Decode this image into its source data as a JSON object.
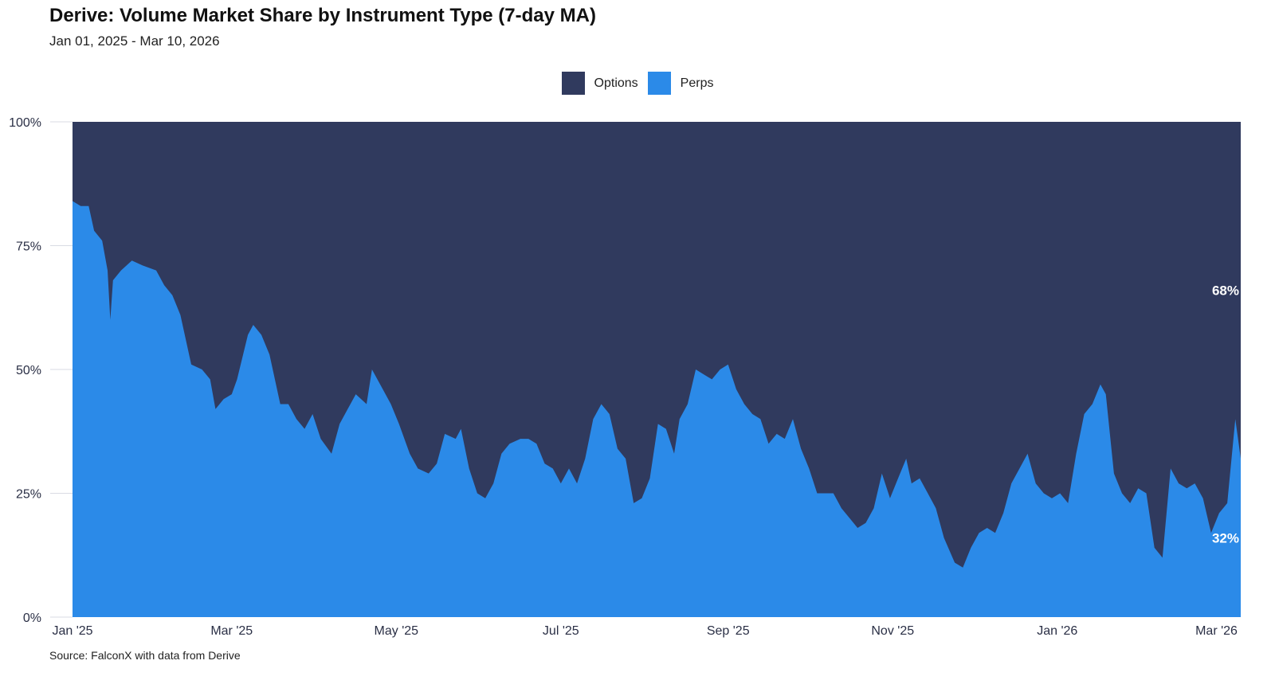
{
  "title": "Derive: Volume Market Share by Instrument Type (7-day MA)",
  "subtitle": "Jan 01, 2025 - Mar 10, 2026",
  "source": "Source: FalconX with data from Derive",
  "legend": [
    {
      "label": "Options",
      "color": "#303a5e"
    },
    {
      "label": "Perps",
      "color": "#2b8ae8"
    }
  ],
  "chart_data": {
    "type": "area",
    "stacked": true,
    "normalized": true,
    "x_type": "date",
    "x_tick_labels": [
      "Jan '25",
      "Mar '25",
      "May '25",
      "Jul '25",
      "Sep '25",
      "Nov '25",
      "Jan '26",
      "Mar '26"
    ],
    "x_tick_dates": [
      "2025-01-01",
      "2025-03-01",
      "2025-05-01",
      "2025-07-01",
      "2025-09-01",
      "2025-11-01",
      "2026-01-01",
      "2026-03-01"
    ],
    "y_tick_labels": [
      "0%",
      "25%",
      "50%",
      "75%",
      "100%"
    ],
    "y_ticks": [
      0,
      25,
      50,
      75,
      100
    ],
    "ylim": [
      0,
      100
    ],
    "x_range": [
      "2025-01-01",
      "2026-03-10"
    ],
    "series": [
      {
        "name": "Options",
        "color": "#303a5e",
        "note_values": "complement of Perps (100 - Perps)"
      },
      {
        "name": "Perps",
        "color": "#2b8ae8",
        "points": [
          [
            "2025-01-01",
            84
          ],
          [
            "2025-01-04",
            83
          ],
          [
            "2025-01-07",
            83
          ],
          [
            "2025-01-09",
            78
          ],
          [
            "2025-01-12",
            76
          ],
          [
            "2025-01-14",
            70
          ],
          [
            "2025-01-15",
            60
          ],
          [
            "2025-01-16",
            68
          ],
          [
            "2025-01-19",
            70
          ],
          [
            "2025-01-23",
            72
          ],
          [
            "2025-01-27",
            71
          ],
          [
            "2025-02-01",
            70
          ],
          [
            "2025-02-04",
            67
          ],
          [
            "2025-02-07",
            65
          ],
          [
            "2025-02-10",
            61
          ],
          [
            "2025-02-14",
            51
          ],
          [
            "2025-02-18",
            50
          ],
          [
            "2025-02-21",
            48
          ],
          [
            "2025-02-23",
            42
          ],
          [
            "2025-02-26",
            44
          ],
          [
            "2025-03-01",
            45
          ],
          [
            "2025-03-03",
            48
          ],
          [
            "2025-03-07",
            57
          ],
          [
            "2025-03-09",
            59
          ],
          [
            "2025-03-12",
            57
          ],
          [
            "2025-03-15",
            53
          ],
          [
            "2025-03-19",
            43
          ],
          [
            "2025-03-22",
            43
          ],
          [
            "2025-03-25",
            40
          ],
          [
            "2025-03-28",
            38
          ],
          [
            "2025-03-31",
            41
          ],
          [
            "2025-04-03",
            36
          ],
          [
            "2025-04-07",
            33
          ],
          [
            "2025-04-10",
            39
          ],
          [
            "2025-04-13",
            42
          ],
          [
            "2025-04-16",
            45
          ],
          [
            "2025-04-20",
            43
          ],
          [
            "2025-04-22",
            50
          ],
          [
            "2025-04-26",
            46
          ],
          [
            "2025-04-29",
            43
          ],
          [
            "2025-05-02",
            39
          ],
          [
            "2025-05-06",
            33
          ],
          [
            "2025-05-09",
            30
          ],
          [
            "2025-05-13",
            29
          ],
          [
            "2025-05-16",
            31
          ],
          [
            "2025-05-19",
            37
          ],
          [
            "2025-05-23",
            36
          ],
          [
            "2025-05-25",
            38
          ],
          [
            "2025-05-28",
            30
          ],
          [
            "2025-05-31",
            25
          ],
          [
            "2025-06-03",
            24
          ],
          [
            "2025-06-06",
            27
          ],
          [
            "2025-06-09",
            33
          ],
          [
            "2025-06-12",
            35
          ],
          [
            "2025-06-16",
            36
          ],
          [
            "2025-06-19",
            36
          ],
          [
            "2025-06-22",
            35
          ],
          [
            "2025-06-25",
            31
          ],
          [
            "2025-06-28",
            30
          ],
          [
            "2025-07-01",
            27
          ],
          [
            "2025-07-04",
            30
          ],
          [
            "2025-07-07",
            27
          ],
          [
            "2025-07-10",
            32
          ],
          [
            "2025-07-13",
            40
          ],
          [
            "2025-07-16",
            43
          ],
          [
            "2025-07-19",
            41
          ],
          [
            "2025-07-22",
            34
          ],
          [
            "2025-07-25",
            32
          ],
          [
            "2025-07-28",
            23
          ],
          [
            "2025-07-31",
            24
          ],
          [
            "2025-08-03",
            28
          ],
          [
            "2025-08-06",
            39
          ],
          [
            "2025-08-09",
            38
          ],
          [
            "2025-08-12",
            33
          ],
          [
            "2025-08-14",
            40
          ],
          [
            "2025-08-17",
            43
          ],
          [
            "2025-08-20",
            50
          ],
          [
            "2025-08-23",
            49
          ],
          [
            "2025-08-26",
            48
          ],
          [
            "2025-08-29",
            50
          ],
          [
            "2025-09-01",
            51
          ],
          [
            "2025-09-04",
            46
          ],
          [
            "2025-09-07",
            43
          ],
          [
            "2025-09-10",
            41
          ],
          [
            "2025-09-13",
            40
          ],
          [
            "2025-09-16",
            35
          ],
          [
            "2025-09-19",
            37
          ],
          [
            "2025-09-22",
            36
          ],
          [
            "2025-09-25",
            40
          ],
          [
            "2025-09-28",
            34
          ],
          [
            "2025-10-01",
            30
          ],
          [
            "2025-10-04",
            25
          ],
          [
            "2025-10-07",
            25
          ],
          [
            "2025-10-10",
            25
          ],
          [
            "2025-10-13",
            22
          ],
          [
            "2025-10-16",
            20
          ],
          [
            "2025-10-19",
            18
          ],
          [
            "2025-10-22",
            19
          ],
          [
            "2025-10-25",
            22
          ],
          [
            "2025-10-28",
            29
          ],
          [
            "2025-10-31",
            24
          ],
          [
            "2025-11-03",
            28
          ],
          [
            "2025-11-06",
            32
          ],
          [
            "2025-11-08",
            27
          ],
          [
            "2025-11-11",
            28
          ],
          [
            "2025-11-14",
            25
          ],
          [
            "2025-11-17",
            22
          ],
          [
            "2025-11-20",
            16
          ],
          [
            "2025-11-24",
            11
          ],
          [
            "2025-11-27",
            10
          ],
          [
            "2025-11-30",
            14
          ],
          [
            "2025-12-03",
            17
          ],
          [
            "2025-12-06",
            18
          ],
          [
            "2025-12-09",
            17
          ],
          [
            "2025-12-12",
            21
          ],
          [
            "2025-12-15",
            27
          ],
          [
            "2025-12-18",
            30
          ],
          [
            "2025-12-21",
            33
          ],
          [
            "2025-12-24",
            27
          ],
          [
            "2025-12-27",
            25
          ],
          [
            "2025-12-30",
            24
          ],
          [
            "2026-01-02",
            25
          ],
          [
            "2026-01-05",
            23
          ],
          [
            "2026-01-08",
            33
          ],
          [
            "2026-01-11",
            41
          ],
          [
            "2026-01-14",
            43
          ],
          [
            "2026-01-17",
            47
          ],
          [
            "2026-01-19",
            45
          ],
          [
            "2026-01-22",
            29
          ],
          [
            "2026-01-25",
            25
          ],
          [
            "2026-01-28",
            23
          ],
          [
            "2026-01-31",
            26
          ],
          [
            "2026-02-03",
            25
          ],
          [
            "2026-02-06",
            14
          ],
          [
            "2026-02-09",
            12
          ],
          [
            "2026-02-12",
            30
          ],
          [
            "2026-02-15",
            27
          ],
          [
            "2026-02-18",
            26
          ],
          [
            "2026-02-21",
            27
          ],
          [
            "2026-02-24",
            24
          ],
          [
            "2026-02-27",
            17
          ],
          [
            "2026-03-02",
            21
          ],
          [
            "2026-03-05",
            23
          ],
          [
            "2026-03-08",
            40
          ],
          [
            "2026-03-10",
            32
          ]
        ]
      }
    ],
    "end_labels": [
      {
        "series": "Options",
        "text": "68%",
        "value": 68
      },
      {
        "series": "Perps",
        "text": "32%",
        "value": 32
      }
    ]
  }
}
